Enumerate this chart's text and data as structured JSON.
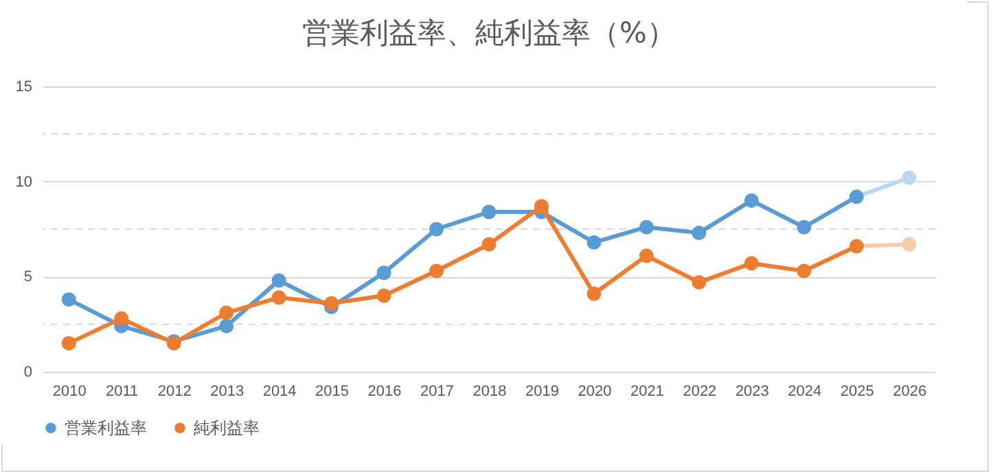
{
  "chart_data": {
    "type": "line",
    "title": "営業利益率、純利益率（%）",
    "categories": [
      "2010",
      "2011",
      "2012",
      "2013",
      "2014",
      "2015",
      "2016",
      "2017",
      "2018",
      "2019",
      "2020",
      "2021",
      "2022",
      "2023",
      "2024",
      "2025",
      "2026"
    ],
    "series": [
      {
        "name": "営業利益率",
        "color": "#5b9bd5",
        "colors": [
          "#5b9bd5",
          "#5b9bd5",
          "#5b9bd5",
          "#5b9bd5",
          "#5b9bd5",
          "#5b9bd5",
          "#5b9bd5",
          "#5b9bd5",
          "#5b9bd5",
          "#5b9bd5",
          "#5b9bd5",
          "#5b9bd5",
          "#5b9bd5",
          "#5b9bd5",
          "#5b9bd5",
          "#5b9bd5",
          "#bdd7ee"
        ],
        "values": [
          3.8,
          2.4,
          1.6,
          2.4,
          4.8,
          3.4,
          5.2,
          7.5,
          8.4,
          8.4,
          6.8,
          7.6,
          7.3,
          9.0,
          7.6,
          9.2,
          10.2
        ]
      },
      {
        "name": "純利益率",
        "color": "#ed7d31",
        "colors": [
          "#ed7d31",
          "#ed7d31",
          "#ed7d31",
          "#ed7d31",
          "#ed7d31",
          "#ed7d31",
          "#ed7d31",
          "#ed7d31",
          "#ed7d31",
          "#ed7d31",
          "#ed7d31",
          "#ed7d31",
          "#ed7d31",
          "#ed7d31",
          "#ed7d31",
          "#ed7d31",
          "#f8cbad"
        ],
        "values": [
          1.5,
          2.8,
          1.5,
          3.1,
          3.9,
          3.6,
          4.0,
          5.3,
          6.7,
          8.7,
          4.1,
          6.1,
          4.7,
          5.7,
          5.3,
          6.6,
          6.7
        ]
      }
    ],
    "ylim": [
      0,
      15
    ],
    "yticks": [
      0,
      {
        "value": 2.5,
        "label": null
      },
      5,
      {
        "value": 7.5,
        "label": null
      },
      10,
      {
        "value": 12.5,
        "label": null
      },
      15
    ],
    "grid": true,
    "legend": "bottom",
    "marker": "circle",
    "line_style": "solid"
  }
}
